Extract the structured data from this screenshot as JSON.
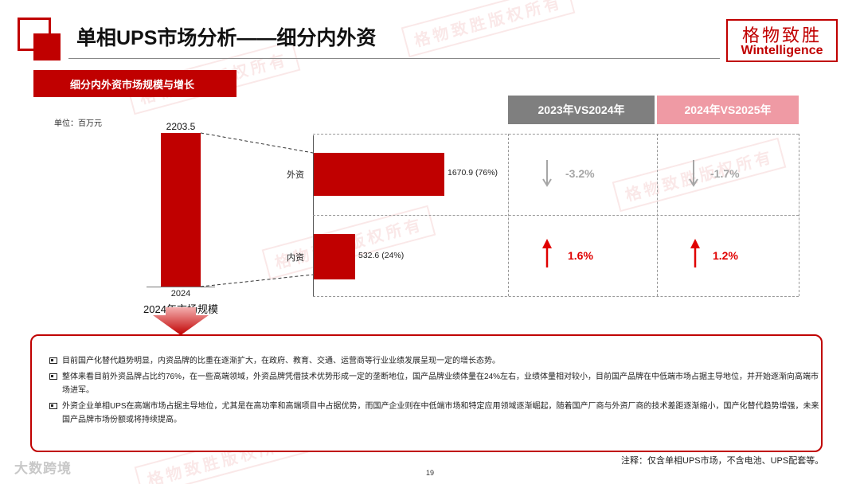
{
  "header": {
    "title": "单相UPS市场分析——细分内外资",
    "brand_cn": "格物致胜",
    "brand_en": "Wintelligence"
  },
  "section": {
    "title": "细分内外资市场规模与增长",
    "unit": "单位：百万元"
  },
  "watermark": "格物致胜版权所有",
  "chart_data": {
    "type": "bar",
    "title": "2024年市场规模",
    "total": {
      "category": "2024",
      "value": 2203.5,
      "label": "2203.5"
    },
    "breakdown": [
      {
        "category": "外资",
        "value": 1670.9,
        "share": 76,
        "label": "1670.9 (76%)"
      },
      {
        "category": "内资",
        "value": 532.6,
        "share": 24,
        "label": "532.6 (24%)"
      }
    ]
  },
  "comparison": {
    "columns": [
      "2023年VS2024年",
      "2024年VS2025年"
    ],
    "rows": [
      {
        "segment": "外资",
        "cells": [
          {
            "value": "-3.2%",
            "direction": "down"
          },
          {
            "value": "-1.7%",
            "direction": "down"
          }
        ]
      },
      {
        "segment": "内资",
        "cells": [
          {
            "value": "1.6%",
            "direction": "up"
          },
          {
            "value": "1.2%",
            "direction": "up"
          }
        ]
      }
    ]
  },
  "summary": {
    "bullets": [
      "目前国产化替代趋势明显，内资品牌的比重在逐渐扩大，在政府、教育、交通、运营商等行业业绩发展呈现一定的增长态势。",
      "整体来看目前外资品牌占比约76%，在一些高端领域，外资品牌凭借技术优势形成一定的垄断地位，国产品牌业绩体量在24%左右，业绩体量相对较小，目前国产品牌在中低端市场占据主导地位，并开始逐渐向高端市场进军。",
      "外资企业单相UPS在高端市场占据主导地位，尤其是在高功率和高端项目中占据优势，而国产企业则在中低端市场和特定应用领域逐渐崛起，随着国产厂商与外资厂商的技术差距逐渐缩小，国产化替代趋势增强，未来国产品牌市场份额或将持续提高。"
    ]
  },
  "footer": {
    "note": "注释：仅含单相UPS市场，不含电池、UPS配套等。",
    "page": "19",
    "source": "大数跨境"
  },
  "colors": {
    "accent": "#c00000",
    "grey_header": "#7f7f7f",
    "pink_header": "#ef9aa4",
    "up": "#e00000",
    "down": "#a6a6a6"
  }
}
